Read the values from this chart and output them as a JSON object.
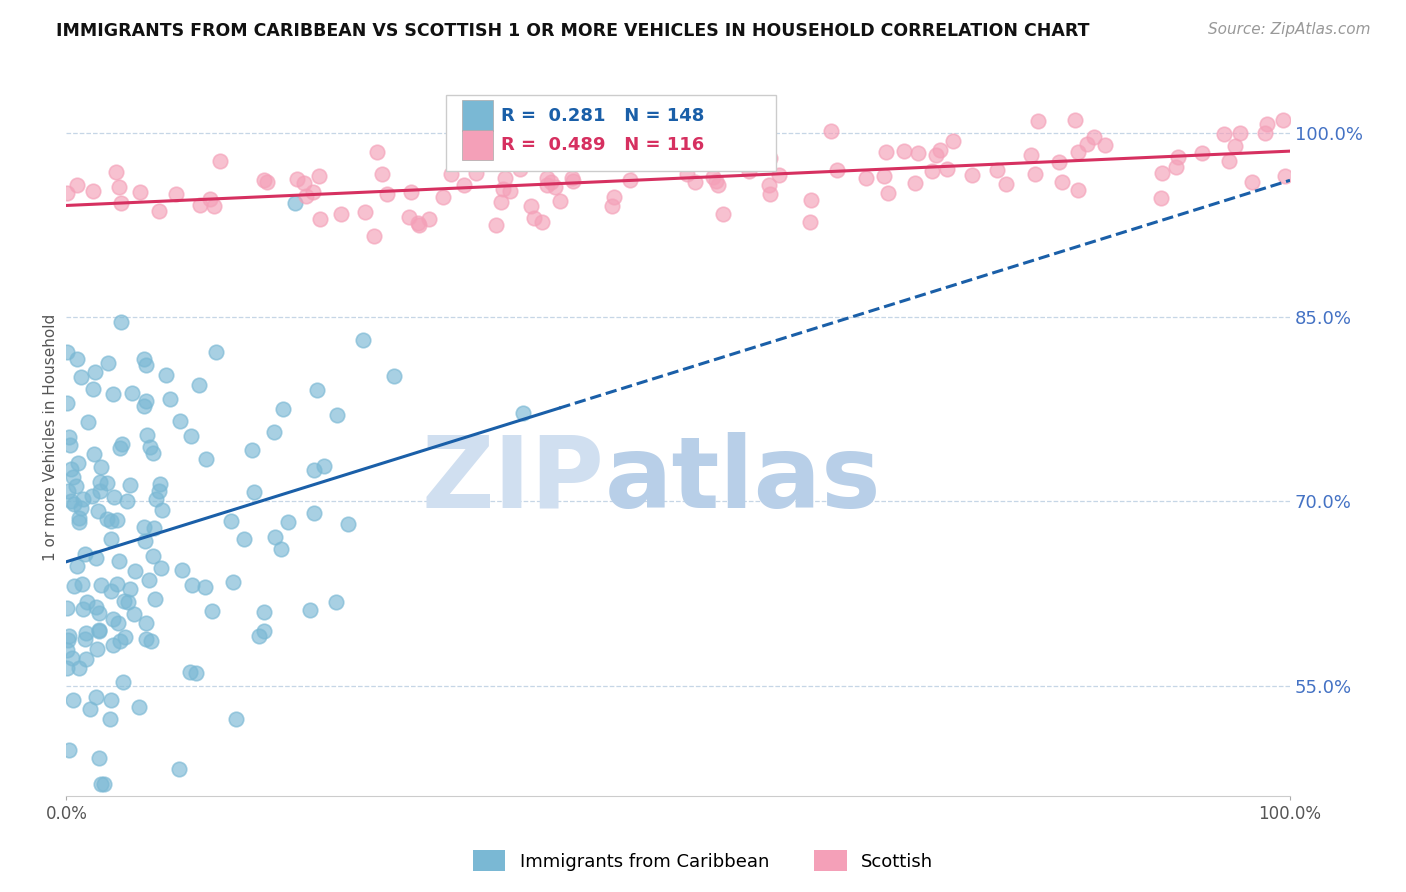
{
  "title": "IMMIGRANTS FROM CARIBBEAN VS SCOTTISH 1 OR MORE VEHICLES IN HOUSEHOLD CORRELATION CHART",
  "source": "Source: ZipAtlas.com",
  "ylabel": "1 or more Vehicles in Household",
  "ytick_labels": [
    "55.0%",
    "70.0%",
    "85.0%",
    "100.0%"
  ],
  "ytick_values": [
    0.55,
    0.7,
    0.85,
    1.0
  ],
  "xmin": 0.0,
  "xmax": 1.0,
  "ymin": 0.46,
  "ymax": 1.045,
  "legend_label_blue": "Immigrants from Caribbean",
  "legend_label_pink": "Scottish",
  "R_blue": 0.281,
  "N_blue": 148,
  "R_pink": 0.489,
  "N_pink": 116,
  "color_blue": "#7ab8d4",
  "color_pink": "#f4a0b8",
  "color_line_blue": "#1a5fa8",
  "color_line_pink": "#d63060",
  "watermark_zip": "ZIP",
  "watermark_atlas": "atlas",
  "watermark_color_zip": "#d0dff0",
  "watermark_color_atlas": "#b8cfe8",
  "background_color": "#ffffff",
  "grid_color": "#b8cce0",
  "title_fontsize": 12.5,
  "source_fontsize": 11,
  "tick_fontsize": 12,
  "ylabel_fontsize": 11,
  "legend_fontsize": 13,
  "scatter_size": 110,
  "scatter_alpha": 0.65,
  "scatter_lw": 1.2
}
